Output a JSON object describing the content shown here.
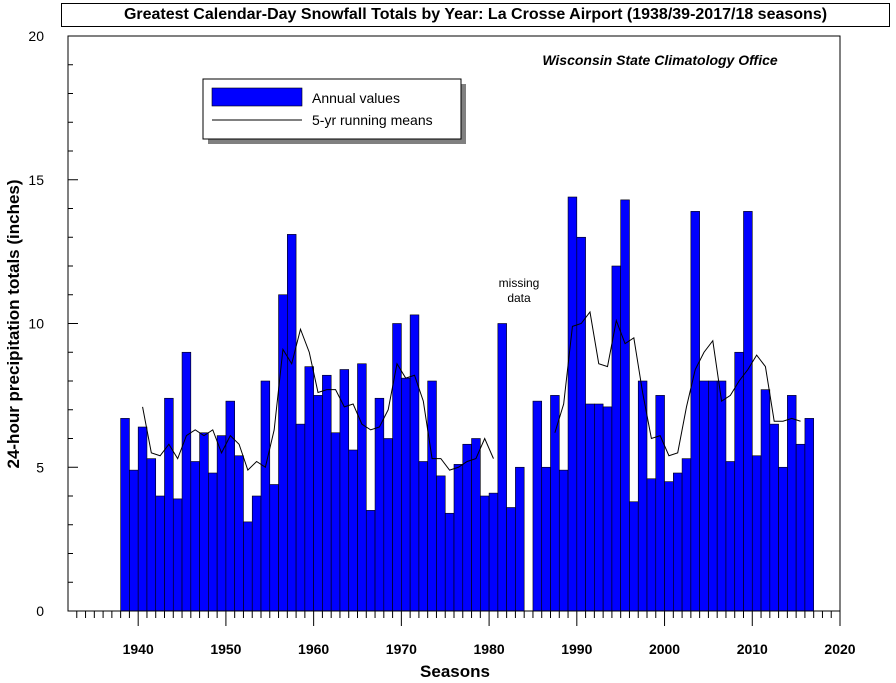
{
  "chart_data": {
    "type": "bar",
    "title": "Greatest Calendar-Day Snowfall Totals by Year: La Crosse Airport (1938/39-2017/18 seasons)",
    "source_note": "Wisconsin State Climatology Office",
    "xlabel": "Seasons",
    "ylabel": "24-hour precipitation totals (inches)",
    "xlim": [
      1932,
      2020
    ],
    "ylim": [
      0,
      20
    ],
    "x_ticks": [
      1940,
      1950,
      1960,
      1970,
      1980,
      1990,
      2000,
      2010,
      2020
    ],
    "y_ticks": [
      0,
      5,
      10,
      15,
      20
    ],
    "annotation": [
      "missing",
      "data"
    ],
    "legend_position": "upper-left",
    "grid": false,
    "bar_color": "#0000FF",
    "line_color": "#000000",
    "series": [
      {
        "name": "Annual values",
        "type": "bar",
        "x": [
          1939,
          1940,
          1941,
          1942,
          1943,
          1944,
          1945,
          1946,
          1947,
          1948,
          1949,
          1950,
          1951,
          1952,
          1953,
          1954,
          1955,
          1956,
          1957,
          1958,
          1959,
          1960,
          1961,
          1962,
          1963,
          1964,
          1965,
          1966,
          1967,
          1968,
          1969,
          1970,
          1971,
          1972,
          1973,
          1974,
          1975,
          1976,
          1977,
          1978,
          1979,
          1980,
          1981,
          1982,
          1983,
          1984,
          1985,
          1986,
          1987,
          1988,
          1989,
          1990,
          1991,
          1992,
          1993,
          1994,
          1995,
          1996,
          1997,
          1998,
          1999,
          2000,
          2001,
          2002,
          2003,
          2004,
          2005,
          2006,
          2007,
          2008,
          2009,
          2010,
          2011,
          2012,
          2013,
          2014,
          2015,
          2016,
          2017,
          2018
        ],
        "values": [
          6.7,
          4.9,
          6.4,
          5.3,
          4.0,
          7.4,
          3.9,
          9.0,
          5.2,
          6.2,
          4.8,
          6.1,
          7.3,
          5.4,
          3.1,
          4.0,
          8.0,
          4.4,
          11.0,
          13.1,
          6.5,
          8.5,
          7.5,
          8.2,
          6.2,
          8.4,
          5.6,
          8.6,
          3.5,
          7.4,
          6.0,
          10.0,
          8.1,
          10.3,
          5.2,
          8.0,
          4.7,
          3.4,
          5.1,
          5.8,
          6.0,
          4.0,
          4.1,
          10.0,
          3.6,
          5.0,
          null,
          7.3,
          5.0,
          7.5,
          4.9,
          14.4,
          13.0,
          7.2,
          7.2,
          7.1,
          12.0,
          14.3,
          3.8,
          8.0,
          4.6,
          7.5,
          4.5,
          4.8,
          5.3,
          13.9,
          8.0,
          8.0,
          8.0,
          5.2,
          9.0,
          13.9,
          5.4,
          7.7,
          6.5,
          5.0,
          7.5,
          5.8,
          6.7,
          null
        ]
      },
      {
        "name": "5-yr running means",
        "type": "line",
        "x": [
          1941,
          1942,
          1943,
          1944,
          1945,
          1946,
          1947,
          1948,
          1949,
          1950,
          1951,
          1952,
          1953,
          1954,
          1955,
          1956,
          1957,
          1958,
          1959,
          1960,
          1961,
          1962,
          1963,
          1964,
          1965,
          1966,
          1967,
          1968,
          1969,
          1970,
          1971,
          1972,
          1973,
          1974,
          1975,
          1976,
          1977,
          1978,
          1979,
          1980,
          1981,
          1982,
          1983,
          null,
          1988,
          1989,
          1990,
          1991,
          1992,
          1993,
          1994,
          1995,
          1996,
          1997,
          1998,
          1999,
          2000,
          2001,
          2002,
          2003,
          2004,
          2005,
          2006,
          2007,
          2008,
          2009,
          2010,
          2011,
          2012,
          2013,
          2014,
          2015,
          2016
        ],
        "values": [
          7.1,
          5.5,
          5.4,
          5.8,
          5.3,
          6.1,
          6.3,
          6.1,
          6.3,
          5.5,
          6.1,
          5.8,
          4.9,
          5.2,
          5.0,
          6.3,
          9.1,
          8.6,
          9.8,
          9.0,
          7.6,
          7.7,
          7.7,
          7.1,
          7.2,
          6.5,
          6.3,
          6.4,
          7.0,
          8.6,
          8.1,
          8.2,
          7.3,
          5.3,
          5.3,
          4.9,
          5.0,
          5.2,
          5.3,
          6.0,
          5.3,
          null,
          null,
          null,
          6.2,
          7.2,
          9.9,
          10.0,
          10.4,
          8.6,
          8.5,
          10.1,
          9.3,
          9.5,
          7.6,
          6.0,
          6.1,
          5.4,
          5.5,
          7.1,
          8.4,
          9.0,
          9.4,
          7.3,
          7.5,
          8.0,
          8.4,
          8.9,
          8.5,
          6.6,
          6.6,
          6.7,
          6.6
        ]
      }
    ]
  }
}
